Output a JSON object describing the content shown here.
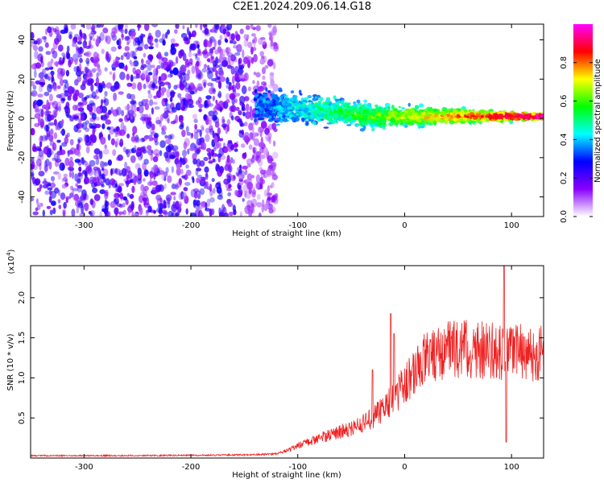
{
  "title": "C2E1.2024.209.06.14.G18",
  "chart_data": [
    {
      "type": "heatmap",
      "title": "C2E1.2024.209.06.14.G18",
      "xlabel": "Height of straight line (km)",
      "ylabel": "Frequency (Hz)",
      "xlim": [
        -350,
        130
      ],
      "ylim": [
        -50,
        48
      ],
      "x_ticks": [
        "-300",
        "-200",
        "-100",
        "0",
        "100"
      ],
      "y_ticks": [
        "-40",
        "-20",
        "0",
        "20",
        "40"
      ],
      "x_tick_values": [
        -300,
        -200,
        -100,
        0,
        100
      ],
      "y_tick_values": [
        -40,
        -20,
        0,
        20,
        40
      ],
      "colorbar": {
        "label": "Normalized spectral amplitude",
        "range": [
          0.0,
          1.0
        ],
        "ticks": [
          "0.0",
          "0.2",
          "0.4",
          "0.6",
          "0.8"
        ],
        "tick_values": [
          0.0,
          0.2,
          0.4,
          0.6,
          0.8
        ],
        "colormap": [
          "#ffffff",
          "#8a00ff",
          "#0000ff",
          "#00ffff",
          "#00ff00",
          "#ffff00",
          "#ff0000",
          "#ff00ff"
        ]
      },
      "regions": [
        {
          "description": "noise",
          "x_range": [
            -350,
            -140
          ],
          "freq_range": [
            -50,
            48
          ],
          "amplitude": 0.15
        },
        {
          "description": "signal",
          "x_range": [
            -140,
            130
          ],
          "center_freq": [
            [
              -140,
              6
            ],
            [
              -100,
              5
            ],
            [
              -60,
              3
            ],
            [
              -30,
              1
            ],
            [
              0,
              1
            ],
            [
              50,
              1
            ],
            [
              100,
              1
            ],
            [
              130,
              1
            ]
          ],
          "amplitude_peak": 0.9
        }
      ]
    },
    {
      "type": "line",
      "xlabel": "Height of straight line (km)",
      "ylabel": "SNR (10 * v/v)",
      "y_multiplier": "(x10",
      "y_multiplier_exp": "4",
      "y_multiplier_close": ")",
      "xlim": [
        -350,
        130
      ],
      "ylim": [
        0,
        24000
      ],
      "x_ticks": [
        "-300",
        "-200",
        "-100",
        "0",
        "100"
      ],
      "y_ticks": [
        "0.5",
        "1.0",
        "1.5",
        "2.0"
      ],
      "x_tick_values": [
        -300,
        -200,
        -100,
        0,
        100
      ],
      "y_tick_values": [
        5000,
        10000,
        15000,
        20000
      ],
      "color": "#ee2222",
      "series": [
        {
          "x": [
            -350,
            -300,
            -250,
            -200,
            -150,
            -120,
            -110,
            -100,
            -90,
            -80,
            -70,
            -60,
            -50,
            -40,
            -30,
            -20,
            -10,
            0,
            10,
            20,
            30,
            40,
            50,
            60,
            70,
            80,
            90,
            100,
            110,
            120,
            130
          ],
          "values": [
            300,
            300,
            300,
            350,
            400,
            500,
            900,
            1500,
            2000,
            2500,
            2900,
            3300,
            3700,
            4200,
            5000,
            6200,
            7500,
            9200,
            11000,
            12500,
            13200,
            13600,
            13700,
            13600,
            13500,
            13500,
            13400,
            13300,
            13200,
            13100,
            13000
          ],
          "spikes": [
            {
              "x": -30,
              "value": 11000
            },
            {
              "x": -13,
              "value": 18000
            },
            {
              "x": -10,
              "value": 15500
            },
            {
              "x": 93,
              "value": 24000
            },
            {
              "x": 95,
              "value": 2000
            }
          ]
        }
      ]
    }
  ]
}
